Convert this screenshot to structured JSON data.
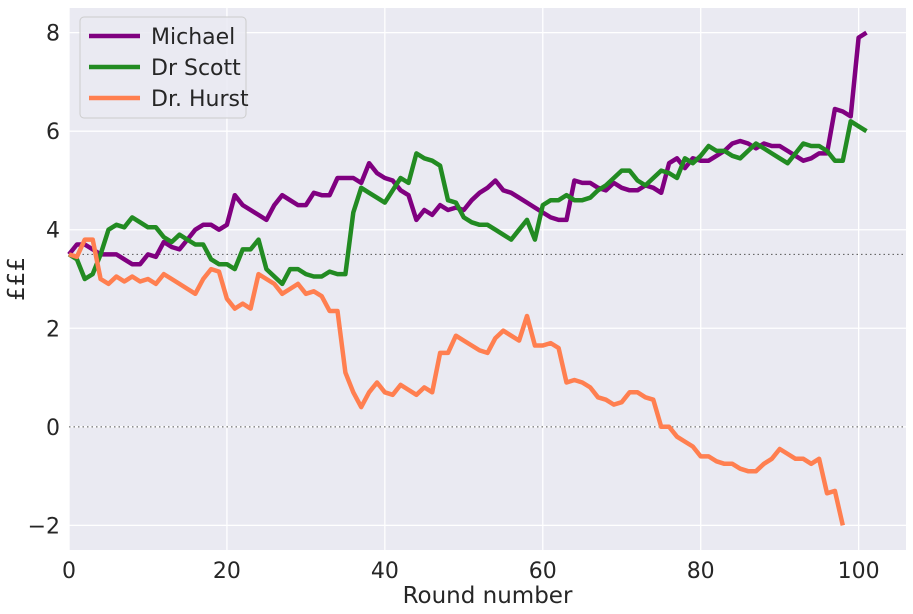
{
  "chart_data": {
    "type": "line",
    "title": "",
    "xlabel": "Round number",
    "ylabel": "£££",
    "xlim": [
      0,
      106
    ],
    "ylim": [
      -2.5,
      8.5
    ],
    "xticks": [
      0,
      20,
      40,
      60,
      80,
      100
    ],
    "yticks": [
      -2,
      0,
      2,
      4,
      6,
      8
    ],
    "xtick_labels": [
      "0",
      "20",
      "40",
      "60",
      "80",
      "100"
    ],
    "ytick_labels": [
      "−2",
      "0",
      "2",
      "4",
      "6",
      "8"
    ],
    "grid": true,
    "background": "#eaeaf2",
    "legend_position": "top-left",
    "reference_lines": [
      3.5,
      0
    ],
    "series": [
      {
        "name": "Michael",
        "color": "#800080",
        "points": [
          [
            0,
            3.5
          ],
          [
            1,
            3.7
          ],
          [
            2,
            3.7
          ],
          [
            3,
            3.6
          ],
          [
            4,
            3.5
          ],
          [
            5,
            3.5
          ],
          [
            6,
            3.5
          ],
          [
            7,
            3.4
          ],
          [
            8,
            3.3
          ],
          [
            9,
            3.3
          ],
          [
            10,
            3.5
          ],
          [
            11,
            3.45
          ],
          [
            12,
            3.75
          ],
          [
            13,
            3.65
          ],
          [
            14,
            3.6
          ],
          [
            15,
            3.8
          ],
          [
            16,
            4.0
          ],
          [
            17,
            4.1
          ],
          [
            18,
            4.1
          ],
          [
            19,
            4.0
          ],
          [
            20,
            4.1
          ],
          [
            21,
            4.7
          ],
          [
            22,
            4.5
          ],
          [
            23,
            4.4
          ],
          [
            24,
            4.3
          ],
          [
            25,
            4.2
          ],
          [
            26,
            4.5
          ],
          [
            27,
            4.7
          ],
          [
            28,
            4.6
          ],
          [
            29,
            4.5
          ],
          [
            30,
            4.5
          ],
          [
            31,
            4.75
          ],
          [
            32,
            4.7
          ],
          [
            33,
            4.7
          ],
          [
            34,
            5.05
          ],
          [
            35,
            5.05
          ],
          [
            36,
            5.05
          ],
          [
            37,
            4.95
          ],
          [
            38,
            5.35
          ],
          [
            39,
            5.15
          ],
          [
            40,
            5.05
          ],
          [
            41,
            5.0
          ],
          [
            42,
            4.8
          ],
          [
            43,
            4.7
          ],
          [
            44,
            4.2
          ],
          [
            45,
            4.4
          ],
          [
            46,
            4.3
          ],
          [
            47,
            4.5
          ],
          [
            48,
            4.4
          ],
          [
            49,
            4.45
          ],
          [
            50,
            4.4
          ],
          [
            51,
            4.6
          ],
          [
            52,
            4.75
          ],
          [
            53,
            4.85
          ],
          [
            54,
            5.0
          ],
          [
            55,
            4.8
          ],
          [
            56,
            4.75
          ],
          [
            57,
            4.65
          ],
          [
            58,
            4.55
          ],
          [
            59,
            4.45
          ],
          [
            60,
            4.35
          ],
          [
            61,
            4.25
          ],
          [
            62,
            4.2
          ],
          [
            63,
            4.2
          ],
          [
            64,
            5.0
          ],
          [
            65,
            4.95
          ],
          [
            66,
            4.95
          ],
          [
            67,
            4.85
          ],
          [
            68,
            4.8
          ],
          [
            69,
            4.95
          ],
          [
            70,
            4.85
          ],
          [
            71,
            4.8
          ],
          [
            72,
            4.8
          ],
          [
            73,
            4.9
          ],
          [
            74,
            4.85
          ],
          [
            75,
            4.75
          ],
          [
            76,
            5.35
          ],
          [
            77,
            5.45
          ],
          [
            78,
            5.25
          ],
          [
            79,
            5.45
          ],
          [
            80,
            5.4
          ],
          [
            81,
            5.4
          ],
          [
            82,
            5.5
          ],
          [
            83,
            5.6
          ],
          [
            84,
            5.75
          ],
          [
            85,
            5.8
          ],
          [
            86,
            5.75
          ],
          [
            87,
            5.65
          ],
          [
            88,
            5.75
          ],
          [
            89,
            5.7
          ],
          [
            90,
            5.7
          ],
          [
            91,
            5.6
          ],
          [
            92,
            5.5
          ],
          [
            93,
            5.4
          ],
          [
            94,
            5.45
          ],
          [
            95,
            5.55
          ],
          [
            96,
            5.55
          ],
          [
            97,
            6.45
          ],
          [
            98,
            6.4
          ],
          [
            99,
            6.3
          ],
          [
            100,
            7.9
          ],
          [
            101,
            8.0
          ]
        ]
      },
      {
        "name": "Dr Scott",
        "color": "#228b22",
        "points": [
          [
            0,
            3.5
          ],
          [
            1,
            3.4
          ],
          [
            2,
            3.0
          ],
          [
            3,
            3.1
          ],
          [
            4,
            3.5
          ],
          [
            5,
            4.0
          ],
          [
            6,
            4.1
          ],
          [
            7,
            4.05
          ],
          [
            8,
            4.25
          ],
          [
            9,
            4.15
          ],
          [
            10,
            4.05
          ],
          [
            11,
            4.05
          ],
          [
            12,
            3.85
          ],
          [
            13,
            3.75
          ],
          [
            14,
            3.9
          ],
          [
            15,
            3.8
          ],
          [
            16,
            3.7
          ],
          [
            17,
            3.7
          ],
          [
            18,
            3.4
          ],
          [
            19,
            3.3
          ],
          [
            20,
            3.3
          ],
          [
            21,
            3.2
          ],
          [
            22,
            3.6
          ],
          [
            23,
            3.6
          ],
          [
            24,
            3.8
          ],
          [
            25,
            3.2
          ],
          [
            26,
            3.05
          ],
          [
            27,
            2.9
          ],
          [
            28,
            3.2
          ],
          [
            29,
            3.2
          ],
          [
            30,
            3.1
          ],
          [
            31,
            3.05
          ],
          [
            32,
            3.05
          ],
          [
            33,
            3.15
          ],
          [
            34,
            3.1
          ],
          [
            35,
            3.1
          ],
          [
            36,
            4.35
          ],
          [
            37,
            4.85
          ],
          [
            38,
            4.75
          ],
          [
            39,
            4.65
          ],
          [
            40,
            4.55
          ],
          [
            41,
            4.8
          ],
          [
            42,
            5.05
          ],
          [
            43,
            4.95
          ],
          [
            44,
            5.55
          ],
          [
            45,
            5.45
          ],
          [
            46,
            5.4
          ],
          [
            47,
            5.3
          ],
          [
            48,
            4.6
          ],
          [
            49,
            4.55
          ],
          [
            50,
            4.25
          ],
          [
            51,
            4.15
          ],
          [
            52,
            4.1
          ],
          [
            53,
            4.1
          ],
          [
            54,
            4.0
          ],
          [
            55,
            3.9
          ],
          [
            56,
            3.8
          ],
          [
            57,
            4.0
          ],
          [
            58,
            4.2
          ],
          [
            59,
            3.8
          ],
          [
            60,
            4.5
          ],
          [
            61,
            4.6
          ],
          [
            62,
            4.6
          ],
          [
            63,
            4.7
          ],
          [
            64,
            4.6
          ],
          [
            65,
            4.6
          ],
          [
            66,
            4.65
          ],
          [
            67,
            4.8
          ],
          [
            68,
            4.9
          ],
          [
            69,
            5.05
          ],
          [
            70,
            5.2
          ],
          [
            71,
            5.2
          ],
          [
            72,
            5.0
          ],
          [
            73,
            4.9
          ],
          [
            74,
            5.05
          ],
          [
            75,
            5.2
          ],
          [
            76,
            5.15
          ],
          [
            77,
            5.05
          ],
          [
            78,
            5.45
          ],
          [
            79,
            5.35
          ],
          [
            80,
            5.5
          ],
          [
            81,
            5.7
          ],
          [
            82,
            5.6
          ],
          [
            83,
            5.6
          ],
          [
            84,
            5.5
          ],
          [
            85,
            5.45
          ],
          [
            86,
            5.6
          ],
          [
            87,
            5.75
          ],
          [
            88,
            5.65
          ],
          [
            89,
            5.55
          ],
          [
            90,
            5.45
          ],
          [
            91,
            5.35
          ],
          [
            92,
            5.55
          ],
          [
            93,
            5.75
          ],
          [
            94,
            5.7
          ],
          [
            95,
            5.7
          ],
          [
            96,
            5.6
          ],
          [
            97,
            5.4
          ],
          [
            98,
            5.4
          ],
          [
            99,
            6.2
          ],
          [
            100,
            6.1
          ],
          [
            101,
            6.0
          ]
        ]
      },
      {
        "name": "Dr. Hurst",
        "color": "#ff7f50",
        "points": [
          [
            0,
            3.5
          ],
          [
            1,
            3.45
          ],
          [
            2,
            3.8
          ],
          [
            3,
            3.8
          ],
          [
            4,
            3.0
          ],
          [
            5,
            2.9
          ],
          [
            6,
            3.05
          ],
          [
            7,
            2.95
          ],
          [
            8,
            3.05
          ],
          [
            9,
            2.95
          ],
          [
            10,
            3.0
          ],
          [
            11,
            2.9
          ],
          [
            12,
            3.1
          ],
          [
            13,
            3.0
          ],
          [
            14,
            2.9
          ],
          [
            15,
            2.8
          ],
          [
            16,
            2.7
          ],
          [
            17,
            3.0
          ],
          [
            18,
            3.2
          ],
          [
            19,
            3.15
          ],
          [
            20,
            2.6
          ],
          [
            21,
            2.4
          ],
          [
            22,
            2.5
          ],
          [
            23,
            2.4
          ],
          [
            24,
            3.1
          ],
          [
            25,
            3.0
          ],
          [
            26,
            2.9
          ],
          [
            27,
            2.7
          ],
          [
            28,
            2.8
          ],
          [
            29,
            2.9
          ],
          [
            30,
            2.7
          ],
          [
            31,
            2.75
          ],
          [
            32,
            2.65
          ],
          [
            33,
            2.35
          ],
          [
            34,
            2.35
          ],
          [
            35,
            1.1
          ],
          [
            36,
            0.7
          ],
          [
            37,
            0.4
          ],
          [
            38,
            0.7
          ],
          [
            39,
            0.9
          ],
          [
            40,
            0.7
          ],
          [
            41,
            0.65
          ],
          [
            42,
            0.85
          ],
          [
            43,
            0.75
          ],
          [
            44,
            0.65
          ],
          [
            45,
            0.8
          ],
          [
            46,
            0.7
          ],
          [
            47,
            1.5
          ],
          [
            48,
            1.5
          ],
          [
            49,
            1.85
          ],
          [
            50,
            1.75
          ],
          [
            51,
            1.65
          ],
          [
            52,
            1.55
          ],
          [
            53,
            1.5
          ],
          [
            54,
            1.8
          ],
          [
            55,
            1.95
          ],
          [
            56,
            1.85
          ],
          [
            57,
            1.75
          ],
          [
            58,
            2.25
          ],
          [
            59,
            1.65
          ],
          [
            60,
            1.65
          ],
          [
            61,
            1.7
          ],
          [
            62,
            1.6
          ],
          [
            63,
            0.9
          ],
          [
            64,
            0.95
          ],
          [
            65,
            0.9
          ],
          [
            66,
            0.8
          ],
          [
            67,
            0.6
          ],
          [
            68,
            0.55
          ],
          [
            69,
            0.45
          ],
          [
            70,
            0.5
          ],
          [
            71,
            0.7
          ],
          [
            72,
            0.7
          ],
          [
            73,
            0.6
          ],
          [
            74,
            0.55
          ],
          [
            75,
            0.0
          ],
          [
            76,
            0.0
          ],
          [
            77,
            -0.2
          ],
          [
            78,
            -0.3
          ],
          [
            79,
            -0.4
          ],
          [
            80,
            -0.6
          ],
          [
            81,
            -0.6
          ],
          [
            82,
            -0.7
          ],
          [
            83,
            -0.75
          ],
          [
            84,
            -0.75
          ],
          [
            85,
            -0.85
          ],
          [
            86,
            -0.9
          ],
          [
            87,
            -0.9
          ],
          [
            88,
            -0.75
          ],
          [
            89,
            -0.65
          ],
          [
            90,
            -0.45
          ],
          [
            91,
            -0.55
          ],
          [
            92,
            -0.65
          ],
          [
            93,
            -0.65
          ],
          [
            94,
            -0.75
          ],
          [
            95,
            -0.65
          ],
          [
            96,
            -1.35
          ],
          [
            97,
            -1.3
          ],
          [
            98,
            -2.0
          ]
        ]
      }
    ]
  }
}
